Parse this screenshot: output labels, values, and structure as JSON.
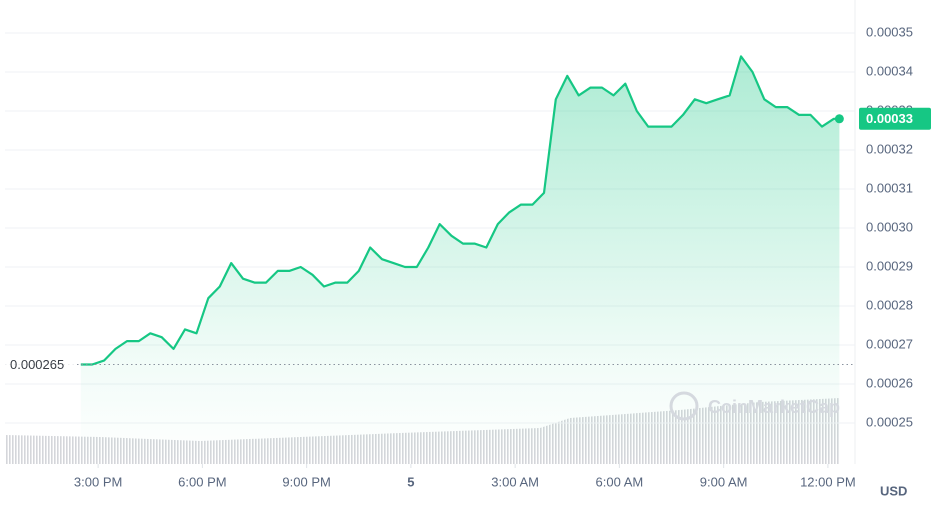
{
  "chart_data": {
    "type": "line",
    "x": [
      14.5,
      14.83,
      15.17,
      15.5,
      15.83,
      16.17,
      16.5,
      16.83,
      17.17,
      17.5,
      17.83,
      18.17,
      18.5,
      18.83,
      19.17,
      19.5,
      19.83,
      20.17,
      20.5,
      20.83,
      21.17,
      21.5,
      21.83,
      22.17,
      22.5,
      22.83,
      23.17,
      23.5,
      23.83,
      24.17,
      24.5,
      24.83,
      25.17,
      25.5,
      25.83,
      26.17,
      26.5,
      26.83,
      27.17,
      27.5,
      27.83,
      28.17,
      28.5,
      28.83,
      29.17,
      29.5,
      29.83,
      30.17,
      30.5,
      30.83,
      31.17,
      31.5,
      31.83,
      32.17,
      32.5,
      32.83,
      33.17,
      33.5,
      33.83,
      34.17,
      34.5,
      34.83,
      35.17,
      35.5,
      35.83,
      36.17,
      36.33
    ],
    "values": [
      0.000265,
      0.000265,
      0.000266,
      0.000269,
      0.000271,
      0.000271,
      0.000273,
      0.000272,
      0.000269,
      0.000274,
      0.000273,
      0.000282,
      0.000285,
      0.000291,
      0.000287,
      0.000286,
      0.000286,
      0.000289,
      0.000289,
      0.00029,
      0.000288,
      0.000285,
      0.000286,
      0.000286,
      0.000289,
      0.000295,
      0.000292,
      0.000291,
      0.00029,
      0.00029,
      0.000295,
      0.000301,
      0.000298,
      0.000296,
      0.000296,
      0.000295,
      0.000301,
      0.000304,
      0.000306,
      0.000306,
      0.000309,
      0.000333,
      0.000339,
      0.000334,
      0.000336,
      0.000336,
      0.000334,
      0.000337,
      0.00033,
      0.000326,
      0.000326,
      0.000326,
      0.000329,
      0.000333,
      0.000332,
      0.000333,
      0.000334,
      0.000344,
      0.00034,
      0.000333,
      0.000331,
      0.000331,
      0.000329,
      0.000329,
      0.000326,
      0.000328,
      0.000328
    ],
    "color": "#16c784",
    "xlim": [
      12.32,
      36.78
    ],
    "xticks": [
      {
        "value": 15,
        "label": "3:00 PM"
      },
      {
        "value": 18,
        "label": "6:00 PM"
      },
      {
        "value": 21,
        "label": "9:00 PM"
      },
      {
        "value": 24,
        "label": "5"
      },
      {
        "value": 27,
        "label": "3:00 AM"
      },
      {
        "value": 30,
        "label": "6:00 AM"
      },
      {
        "value": 33,
        "label": "9:00 AM"
      },
      {
        "value": 36,
        "label": "12:00 PM"
      }
    ],
    "ylim": [
      0.00024,
      0.000355
    ],
    "yticks": [
      0.00025,
      0.00026,
      0.00027,
      0.00028,
      0.00029,
      {
        "value": 0.0003,
        "label": "0.00030"
      },
      0.00031,
      0.00032,
      0.00033,
      0.00034,
      0.00035
    ],
    "grid": true,
    "reference_line": 0.000265,
    "current_price": 0.00033,
    "unit": "USD",
    "watermark": "CoinMarketCap"
  }
}
